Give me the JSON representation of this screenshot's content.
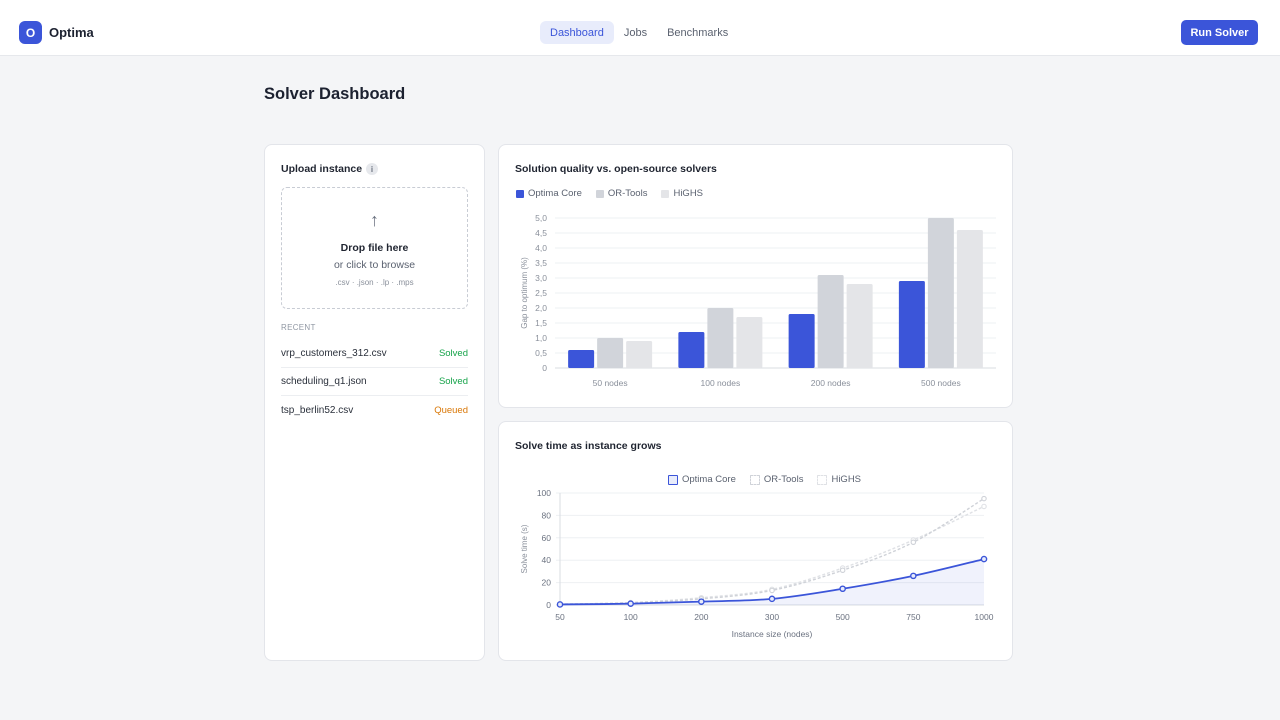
{
  "app": {
    "logo_letter": "O",
    "name": "Optima"
  },
  "nav": [
    {
      "label": "Dashboard",
      "active": true
    },
    {
      "label": "Jobs",
      "active": false
    },
    {
      "label": "Benchmarks",
      "active": false
    }
  ],
  "header": {
    "run_label": "Run Solver"
  },
  "page": {
    "title": "Solver Dashboard"
  },
  "upload": {
    "title": "Upload instance",
    "info_icon": "i",
    "arrow_glyph": "↑",
    "drop_main": "Drop file here",
    "drop_sub": "or click to browse",
    "file_types": ".csv · .json · .lp · .mps",
    "recent_label": "RECENT",
    "recent": [
      {
        "name": "vrp_customers_312.csv",
        "status": "Solved",
        "color": "#16a34a"
      },
      {
        "name": "scheduling_q1.json",
        "status": "Solved",
        "color": "#16a34a"
      },
      {
        "name": "tsp_berlin52.csv",
        "status": "Queued",
        "color": "#d97706"
      }
    ]
  },
  "colors": {
    "accent": "#3b55d9",
    "ortools": "#d1d4da",
    "highs": "#e4e5e8"
  },
  "chart_data": [
    {
      "type": "bar",
      "title": "Solution quality vs. open-source solvers",
      "ylabel": "Gap to optimum (%)",
      "xlabel": "",
      "categories": [
        "50 nodes",
        "100 nodes",
        "200 nodes",
        "500 nodes"
      ],
      "ylim": [
        0,
        5
      ],
      "yticks": [
        "0",
        "0,5",
        "1,0",
        "1,5",
        "2,0",
        "2,5",
        "3,0",
        "3,5",
        "4,0",
        "4,5",
        "5,0"
      ],
      "grid": true,
      "legend": "top-left",
      "series": [
        {
          "name": "Optima Core",
          "values": [
            0.6,
            1.2,
            1.8,
            2.9
          ],
          "color": "#3b55d9"
        },
        {
          "name": "OR-Tools",
          "values": [
            1.0,
            2.0,
            3.1,
            5.0
          ],
          "color": "#d1d4da"
        },
        {
          "name": "HiGHS",
          "values": [
            0.9,
            1.7,
            2.8,
            4.6
          ],
          "color": "#e4e5e8"
        }
      ]
    },
    {
      "type": "line",
      "title": "Solve time as instance grows",
      "ylabel": "Solve time (s)",
      "xlabel": "Instance size (nodes)",
      "categories": [
        "50",
        "100",
        "200",
        "300",
        "500",
        "750",
        "1000"
      ],
      "ylim": [
        0,
        100
      ],
      "yticks": [
        "0",
        "20",
        "40",
        "60",
        "80",
        "100"
      ],
      "grid": true,
      "legend": "top-center",
      "series": [
        {
          "name": "Optima Core",
          "values": [
            0.5,
            1.2,
            3,
            5.5,
            14.5,
            26,
            41
          ],
          "color": "#3b55d9"
        },
        {
          "name": "OR-Tools",
          "values": [
            0.8,
            2,
            5.5,
            13,
            31,
            56,
            95
          ],
          "color": "#cfd2d8"
        },
        {
          "name": "HiGHS",
          "values": [
            0.7,
            2.2,
            6.5,
            14,
            33,
            58,
            88
          ],
          "color": "#dfe1e5"
        }
      ]
    }
  ]
}
